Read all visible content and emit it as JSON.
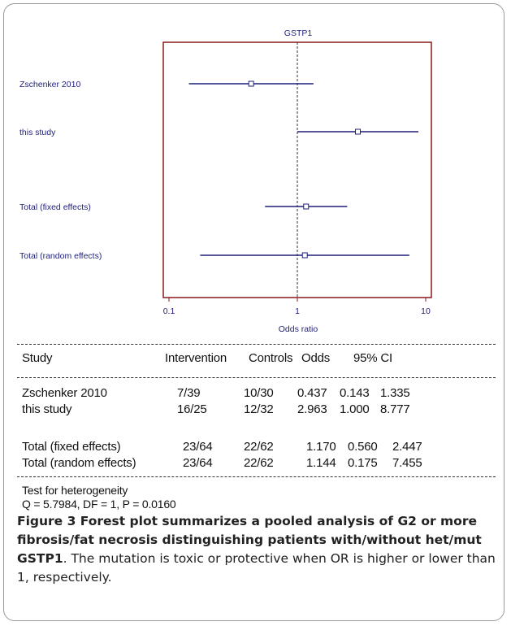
{
  "chart_data": {
    "type": "forest",
    "title": "GSTP1",
    "xlabel": "Odds ratio",
    "xscale": "log",
    "xlim": [
      0.1,
      10
    ],
    "xticks": [
      "0.1",
      "1",
      "10"
    ],
    "reference_line": 1,
    "rows": [
      {
        "label": "Zschenker 2010",
        "or": 0.437,
        "ci_low": 0.143,
        "ci_high": 1.335
      },
      {
        "label": "this study",
        "or": 2.963,
        "ci_low": 1.0,
        "ci_high": 8.777
      },
      {
        "label": "Total (fixed effects)",
        "or": 1.17,
        "ci_low": 0.56,
        "ci_high": 2.447
      },
      {
        "label": "Total (random effects)",
        "or": 1.144,
        "ci_low": 0.175,
        "ci_high": 7.455
      }
    ],
    "colors": {
      "frame": "#8b1a1a",
      "line": "#1f1f7a",
      "label": "#1f1f7a"
    }
  },
  "table": {
    "headers": {
      "study": "Study",
      "intervention": "Intervention",
      "controls": "Controls",
      "odds": "Odds",
      "ci": "95% CI"
    },
    "rows": [
      {
        "study": "Zschenker 2010",
        "intervention": "7/39",
        "controls": "10/30",
        "odds": "0.437",
        "lo": "0.143",
        "hi": "1.335"
      },
      {
        "study": "this study",
        "intervention": "16/25",
        "controls": "12/32",
        "odds": "2.963",
        "lo": "1.000",
        "hi": "8.777"
      },
      {
        "study": "Total (fixed effects)",
        "intervention": "23/64",
        "controls": "22/62",
        "odds": "1.170",
        "lo": "0.560",
        "hi": "2.447"
      },
      {
        "study": "Total (random effects)",
        "intervention": "23/64",
        "controls": "22/62",
        "odds": "1.144",
        "lo": "0.175",
        "hi": "7.455"
      }
    ],
    "heterogeneity_title": "Test for heterogeneity",
    "heterogeneity_stats": "Q = 5.7984, DF = 1, P = 0.0160"
  },
  "caption": {
    "bold": "Figure 3 Forest plot summarizes a pooled analysis of G2 or more fibrosis/fat necrosis distinguishing patients with/without het/mut GSTP1",
    "rest": ". The mutation is toxic or protective when OR is higher or lower than 1, respectively."
  }
}
